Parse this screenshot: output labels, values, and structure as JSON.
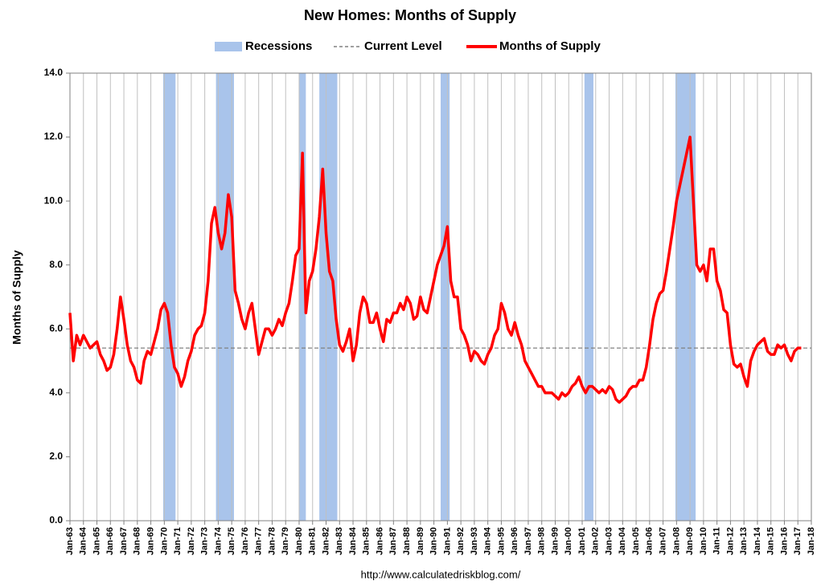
{
  "chart_data": {
    "type": "line",
    "title": "New Homes: Months of Supply",
    "y_label": "Months of Supply",
    "source": "http://www.calculatedriskblog.com/",
    "legend": "top",
    "grid": true,
    "xlim": [
      "Jan-63",
      "Jan-18"
    ],
    "xticks": [
      "Jan-63",
      "Jan-64",
      "Jan-65",
      "Jan-66",
      "Jan-67",
      "Jan-68",
      "Jan-69",
      "Jan-70",
      "Jan-71",
      "Jan-72",
      "Jan-73",
      "Jan-74",
      "Jan-75",
      "Jan-76",
      "Jan-77",
      "Jan-78",
      "Jan-79",
      "Jan-80",
      "Jan-81",
      "Jan-82",
      "Jan-83",
      "Jan-84",
      "Jan-85",
      "Jan-86",
      "Jan-87",
      "Jan-88",
      "Jan-89",
      "Jan-90",
      "Jan-91",
      "Jan-92",
      "Jan-93",
      "Jan-94",
      "Jan-95",
      "Jan-96",
      "Jan-97",
      "Jan-98",
      "Jan-99",
      "Jan-00",
      "Jan-01",
      "Jan-02",
      "Jan-03",
      "Jan-04",
      "Jan-05",
      "Jan-06",
      "Jan-07",
      "Jan-08",
      "Jan-09",
      "Jan-10",
      "Jan-11",
      "Jan-12",
      "Jan-13",
      "Jan-14",
      "Jan-15",
      "Jan-16",
      "Jan-17",
      "Jan-18"
    ],
    "ylim": [
      0,
      14
    ],
    "yticks": [
      {
        "value": 0,
        "label": "0.0"
      },
      {
        "value": 2,
        "label": "2.0"
      },
      {
        "value": 4,
        "label": "4.0"
      },
      {
        "value": 6,
        "label": "6.0"
      },
      {
        "value": 8,
        "label": "8.0"
      },
      {
        "value": 10,
        "label": "10.0"
      },
      {
        "value": 12,
        "label": "12.0"
      },
      {
        "value": 14,
        "label": "14.0"
      }
    ],
    "recessions": {
      "name": "Recessions",
      "color": "#a9c4eb",
      "periods": [
        [
          "Dec-69",
          "Nov-70"
        ],
        [
          "Nov-73",
          "Mar-75"
        ],
        [
          "Jan-80",
          "Jul-80"
        ],
        [
          "Jul-81",
          "Nov-82"
        ],
        [
          "Jul-90",
          "Mar-91"
        ],
        [
          "Mar-01",
          "Nov-01"
        ],
        [
          "Dec-07",
          "Jun-09"
        ]
      ]
    },
    "current_level": {
      "name": "Current Level",
      "color": "#808080",
      "value": 5.4
    },
    "x": [
      "Jan-63",
      "Apr-63",
      "Jul-63",
      "Oct-63",
      "Jan-64",
      "Apr-64",
      "Jul-64",
      "Oct-64",
      "Jan-65",
      "Apr-65",
      "Jul-65",
      "Oct-65",
      "Jan-66",
      "Apr-66",
      "Jul-66",
      "Oct-66",
      "Jan-67",
      "Apr-67",
      "Jul-67",
      "Oct-67",
      "Jan-68",
      "Apr-68",
      "Jul-68",
      "Oct-68",
      "Jan-69",
      "Apr-69",
      "Jul-69",
      "Oct-69",
      "Jan-70",
      "Apr-70",
      "Jul-70",
      "Oct-70",
      "Jan-71",
      "Apr-71",
      "Jul-71",
      "Oct-71",
      "Jan-72",
      "Apr-72",
      "Jul-72",
      "Oct-72",
      "Jan-73",
      "Apr-73",
      "Jul-73",
      "Oct-73",
      "Jan-74",
      "Apr-74",
      "Jul-74",
      "Oct-74",
      "Jan-75",
      "Apr-75",
      "Jul-75",
      "Oct-75",
      "Jan-76",
      "Apr-76",
      "Jul-76",
      "Oct-76",
      "Jan-77",
      "Apr-77",
      "Jul-77",
      "Oct-77",
      "Jan-78",
      "Apr-78",
      "Jul-78",
      "Oct-78",
      "Jan-79",
      "Apr-79",
      "Jul-79",
      "Oct-79",
      "Jan-80",
      "Apr-80",
      "Jul-80",
      "Oct-80",
      "Jan-81",
      "Apr-81",
      "Jul-81",
      "Oct-81",
      "Jan-82",
      "Apr-82",
      "Jul-82",
      "Oct-82",
      "Jan-83",
      "Apr-83",
      "Jul-83",
      "Oct-83",
      "Jan-84",
      "Apr-84",
      "Jul-84",
      "Oct-84",
      "Jan-85",
      "Apr-85",
      "Jul-85",
      "Oct-85",
      "Jan-86",
      "Apr-86",
      "Jul-86",
      "Oct-86",
      "Jan-87",
      "Apr-87",
      "Jul-87",
      "Oct-87",
      "Jan-88",
      "Apr-88",
      "Jul-88",
      "Oct-88",
      "Jan-89",
      "Apr-89",
      "Jul-89",
      "Oct-89",
      "Jan-90",
      "Apr-90",
      "Jul-90",
      "Oct-90",
      "Jan-91",
      "Apr-91",
      "Jul-91",
      "Oct-91",
      "Jan-92",
      "Apr-92",
      "Jul-92",
      "Oct-92",
      "Jan-93",
      "Apr-93",
      "Jul-93",
      "Oct-93",
      "Jan-94",
      "Apr-94",
      "Jul-94",
      "Oct-94",
      "Jan-95",
      "Apr-95",
      "Jul-95",
      "Oct-95",
      "Jan-96",
      "Apr-96",
      "Jul-96",
      "Oct-96",
      "Jan-97",
      "Apr-97",
      "Jul-97",
      "Oct-97",
      "Jan-98",
      "Apr-98",
      "Jul-98",
      "Oct-98",
      "Jan-99",
      "Apr-99",
      "Jul-99",
      "Oct-99",
      "Jan-00",
      "Apr-00",
      "Jul-00",
      "Oct-00",
      "Jan-01",
      "Apr-01",
      "Jul-01",
      "Oct-01",
      "Jan-02",
      "Apr-02",
      "Jul-02",
      "Oct-02",
      "Jan-03",
      "Apr-03",
      "Jul-03",
      "Oct-03",
      "Jan-04",
      "Apr-04",
      "Jul-04",
      "Oct-04",
      "Jan-05",
      "Apr-05",
      "Jul-05",
      "Oct-05",
      "Jan-06",
      "Apr-06",
      "Jul-06",
      "Oct-06",
      "Jan-07",
      "Apr-07",
      "Jul-07",
      "Oct-07",
      "Jan-08",
      "Apr-08",
      "Jul-08",
      "Oct-08",
      "Jan-09",
      "Apr-09",
      "Jul-09",
      "Oct-09",
      "Jan-10",
      "Apr-10",
      "Jul-10",
      "Oct-10",
      "Jan-11",
      "Apr-11",
      "Jul-11",
      "Oct-11",
      "Jan-12",
      "Apr-12",
      "Jul-12",
      "Oct-12",
      "Jan-13",
      "Apr-13",
      "Jul-13",
      "Oct-13",
      "Jan-14",
      "Apr-14",
      "Jul-14",
      "Oct-14",
      "Jan-15",
      "Apr-15",
      "Jul-15",
      "Oct-15",
      "Jan-16",
      "Apr-16",
      "Jul-16",
      "Oct-16",
      "Jan-17",
      "Apr-17"
    ],
    "series": [
      {
        "name": "Months of Supply",
        "color": "#ff0000",
        "values": [
          6.5,
          5.0,
          5.8,
          5.5,
          5.8,
          5.6,
          5.4,
          5.5,
          5.6,
          5.2,
          5.0,
          4.7,
          4.8,
          5.2,
          6.0,
          7.0,
          6.3,
          5.5,
          5.0,
          4.8,
          4.4,
          4.3,
          5.0,
          5.3,
          5.2,
          5.6,
          6.0,
          6.6,
          6.8,
          6.5,
          5.5,
          4.8,
          4.6,
          4.2,
          4.5,
          5.0,
          5.3,
          5.8,
          6.0,
          6.1,
          6.5,
          7.5,
          9.3,
          9.8,
          9.0,
          8.5,
          9.0,
          10.2,
          9.5,
          7.2,
          6.8,
          6.3,
          6.0,
          6.5,
          6.8,
          6.0,
          5.2,
          5.6,
          6.0,
          6.0,
          5.8,
          6.0,
          6.3,
          6.1,
          6.5,
          6.8,
          7.5,
          8.3,
          8.5,
          11.5,
          6.5,
          7.5,
          7.8,
          8.5,
          9.5,
          11.0,
          9.0,
          7.8,
          7.5,
          6.3,
          5.5,
          5.3,
          5.6,
          6.0,
          5.0,
          5.5,
          6.5,
          7.0,
          6.8,
          6.2,
          6.2,
          6.5,
          6.0,
          5.6,
          6.3,
          6.2,
          6.5,
          6.5,
          6.8,
          6.6,
          7.0,
          6.8,
          6.3,
          6.4,
          7.0,
          6.6,
          6.5,
          7.0,
          7.5,
          8.0,
          8.3,
          8.6,
          9.2,
          7.5,
          7.0,
          7.0,
          6.0,
          5.8,
          5.5,
          5.0,
          5.3,
          5.2,
          5.0,
          4.9,
          5.2,
          5.4,
          5.8,
          6.0,
          6.8,
          6.5,
          6.0,
          5.8,
          6.2,
          5.8,
          5.5,
          5.0,
          4.8,
          4.6,
          4.4,
          4.2,
          4.2,
          4.0,
          4.0,
          4.0,
          3.9,
          3.8,
          4.0,
          3.9,
          4.0,
          4.2,
          4.3,
          4.5,
          4.2,
          4.0,
          4.2,
          4.2,
          4.1,
          4.0,
          4.1,
          4.0,
          4.2,
          4.1,
          3.8,
          3.7,
          3.8,
          3.9,
          4.1,
          4.2,
          4.2,
          4.4,
          4.4,
          4.8,
          5.5,
          6.3,
          6.8,
          7.1,
          7.2,
          7.8,
          8.5,
          9.2,
          10.0,
          10.5,
          11.0,
          11.5,
          12.0,
          10.0,
          8.0,
          7.8,
          8.0,
          7.5,
          8.5,
          8.5,
          7.5,
          7.2,
          6.6,
          6.5,
          5.5,
          4.9,
          4.8,
          4.9,
          4.5,
          4.2,
          5.0,
          5.3,
          5.5,
          5.6,
          5.7,
          5.3,
          5.2,
          5.2,
          5.5,
          5.4,
          5.5,
          5.2,
          5.0,
          5.3,
          5.4,
          5.4
        ]
      }
    ]
  }
}
